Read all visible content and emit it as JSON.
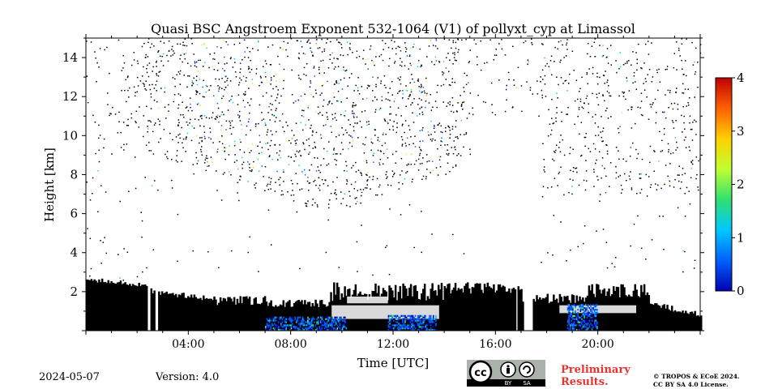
{
  "chart_data": {
    "type": "heatmap",
    "title": "Quasi BSC Angstroem Exponent 532-1064 (V1) of pollyxt_cyp at Limassol",
    "xlabel": "Time [UTC]",
    "ylabel": "Height [km]",
    "xlim_hours": [
      0,
      24
    ],
    "ylim": [
      0,
      15
    ],
    "x_ticks": [
      {
        "hour": 4,
        "label": "04:00"
      },
      {
        "hour": 8,
        "label": "08:00"
      },
      {
        "hour": 12,
        "label": "12:00"
      },
      {
        "hour": 16,
        "label": "16:00"
      },
      {
        "hour": 20,
        "label": "20:00"
      }
    ],
    "y_ticks": [
      2,
      4,
      6,
      8,
      10,
      12,
      14
    ],
    "colorbar": {
      "range": [
        0,
        4
      ],
      "ticks": [
        0,
        1,
        2,
        3,
        4
      ],
      "colormap": "jet",
      "colors": [
        "#0000b0",
        "#0060ff",
        "#00c8ff",
        "#30e070",
        "#c0ff30",
        "#ffd000",
        "#ff6000",
        "#c00000"
      ]
    },
    "no_data_color": "#000000",
    "background_color": "#ffffff",
    "description_regions": {
      "dense_low_layer_km": [
        0,
        2.6
      ],
      "sparse_noise_upper_km": [
        4,
        15
      ]
    }
  },
  "footer": {
    "date": "2024-05-07",
    "version": "Version: 4.0",
    "preliminary_line1": "Preliminary",
    "preliminary_line2": "Results.",
    "copyright_line1": "© TROPOS & ECoE 2024.",
    "copyright_line2": "CC BY SA 4.0 License.",
    "cc_labels": [
      "cc",
      "BY",
      "SA"
    ]
  }
}
